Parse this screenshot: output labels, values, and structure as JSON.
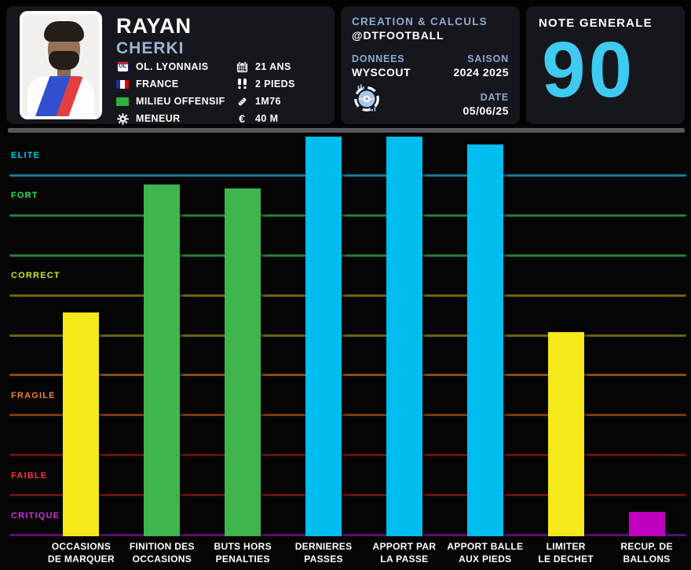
{
  "player": {
    "first_name": "RAYAN",
    "last_name": "CHERKI",
    "club": "OL. LYONNAIS",
    "club_badge": "OL",
    "country": "FRANCE",
    "position": "MILIEU OFFENSIF",
    "role": "MENEUR",
    "age": "21 ANS",
    "feet": "2 PIEDS",
    "height": "1M76",
    "market_value": "40 M",
    "euro_symbol": "€"
  },
  "credits": {
    "title": "CREATION & CALCULS",
    "handle": "@DTFOOTBALL",
    "data_label": "DONNEES",
    "data_source": "WYSCOUT",
    "season_label": "SAISON",
    "season_value": "2024 2025",
    "date_label": "DATE",
    "date_value": "05/06/25"
  },
  "rating": {
    "label": "NOTE GENERALE",
    "value": "90",
    "color": "#3fcaf2"
  },
  "chart_data": {
    "type": "bar",
    "title": "",
    "xlabel": "",
    "ylabel": "",
    "ylim": [
      0,
      100
    ],
    "legend": "none",
    "grid": "horizontal colored zone lines",
    "categories": [
      "OCCASIONS\nDE MARQUER",
      "FINITION DES\nOCCASIONS",
      "BUTS HORS\nPENALTIES",
      "DERNIERES\nPASSES",
      "APPORT PAR\nLA PASSE",
      "APPORT BALLE\nAUX PIEDS",
      "LIMITER\nLE DECHET",
      "RECUP. DE\nBALLONS"
    ],
    "values": [
      56,
      88,
      87,
      100,
      100,
      98,
      51,
      6
    ],
    "bar_colors": [
      "#f5e91a",
      "#3eb54d",
      "#3eb54d",
      "#00bdf0",
      "#00bdf0",
      "#00bdf0",
      "#f5e91a",
      "#bf00bf"
    ],
    "zones": [
      {
        "label": "ELITE",
        "color": "#00c8f5",
        "mid": 95
      },
      {
        "label": "FORT",
        "color": "#2ee04e",
        "mid": 85
      },
      {
        "label": "CORRECT",
        "color": "#d8e02a",
        "mid": 65
      },
      {
        "label": "FRAGILE",
        "color": "#f08030",
        "mid": 35
      },
      {
        "label": "FAIBLE",
        "color": "#ff3434",
        "mid": 15
      },
      {
        "label": "CRITIQUE",
        "color": "#cf2fe0",
        "mid": 5
      }
    ],
    "gridlines": [
      {
        "value": 90,
        "color": "#0e7e97"
      },
      {
        "value": 80,
        "color": "#2a7a35"
      },
      {
        "value": 70,
        "color": "#2a7a35"
      },
      {
        "value": 60,
        "color": "#6d6414"
      },
      {
        "value": 50,
        "color": "#6d6414"
      },
      {
        "value": 40,
        "color": "#8a4e16"
      },
      {
        "value": 30,
        "color": "#7a3a12"
      },
      {
        "value": 20,
        "color": "#6e1010"
      },
      {
        "value": 10,
        "color": "#6e1010"
      },
      {
        "value": 0,
        "color": "#5a0f6e"
      }
    ]
  }
}
